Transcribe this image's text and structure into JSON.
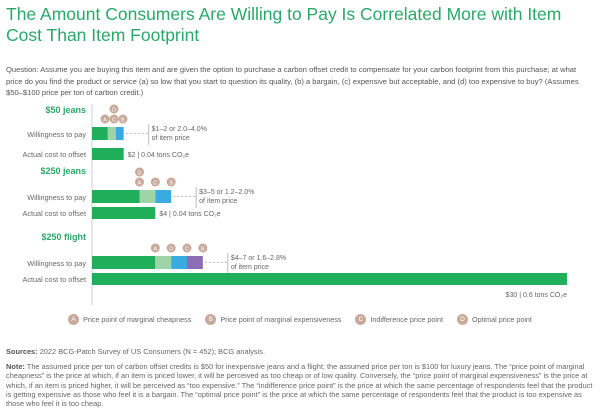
{
  "title": "The Amount Consumers Are Willing to Pay Is Correlated More with Item Cost Than Item Footprint",
  "question": "Question: Assume you are buying this item and are given the option to purchase a carbon offset credit to compensate for your carbon footprint from this purchase; at what price do you find the product or service (a) so low that you start to question its quality, (b) a bargain, (c) expensive but acceptable, and (d) too expensive to buy? (Assumes $50–$100 price per ton of carbon credit.)",
  "colors": {
    "accent": "#2aa86a",
    "green": "#1fae59",
    "light_green": "#9fd4a8",
    "blue": "#3aabe0",
    "purple": "#8a6db5",
    "badge": "#c9a99a"
  },
  "chart_data": {
    "type": "bar",
    "orientation": "horizontal",
    "unit": "USD",
    "xlim": [
      0,
      30
    ],
    "row_labels": {
      "wtp": "Willingness to pay",
      "actual": "Actual cost to offset"
    },
    "groups": [
      {
        "name": "$50 jeans",
        "price_points": {
          "A": 1,
          "C": 1.5,
          "B": 2,
          "D": 1.5
        },
        "segments": [
          {
            "to": 1,
            "color": "green"
          },
          {
            "to": 1.5,
            "color": "light_green"
          },
          {
            "to": 2,
            "color": "blue"
          }
        ],
        "wtp_label": [
          "$1–2 or 2.0–4.0%",
          "of item price"
        ],
        "actual": 2,
        "actual_label": "$2 | 0.04 tons CO₂e"
      },
      {
        "name": "$250 jeans",
        "price_points": {
          "A": 3,
          "C": 4,
          "B": 5,
          "D": 3
        },
        "segments": [
          {
            "to": 3,
            "color": "green"
          },
          {
            "to": 4,
            "color": "light_green"
          },
          {
            "to": 5,
            "color": "blue"
          }
        ],
        "wtp_label": [
          "$3–5 or 1.2–2.0%",
          "of item price"
        ],
        "actual": 4,
        "actual_label": "$4 | 0.04 tons CO₂e"
      },
      {
        "name": "$250 flight",
        "price_points": {
          "A": 4,
          "D": 5,
          "C": 6,
          "B": 7
        },
        "segments": [
          {
            "to": 4,
            "color": "green"
          },
          {
            "to": 5,
            "color": "light_green"
          },
          {
            "to": 6,
            "color": "blue"
          },
          {
            "to": 7,
            "color": "purple"
          }
        ],
        "wtp_label": [
          "$4–7 or 1.6–2.8%",
          "of item price"
        ],
        "actual": 30,
        "actual_label": "$30 | 0.6 tons CO₂e"
      }
    ],
    "legend": [
      {
        "key": "A",
        "label": "Price point of marginal cheapness"
      },
      {
        "key": "B",
        "label": "Price point of marginal expensiveness"
      },
      {
        "key": "C",
        "label": "Indifference price point"
      },
      {
        "key": "D",
        "label": "Optimal price point"
      }
    ]
  },
  "sources_label": "Sources:",
  "sources": " 2022 BCG-Patch Survey of US Consumers (N = 452); BCG analysis.",
  "note_label": "Note:",
  "note": " The assumed price per ton of carbon offset credits is $50 for inexpensive jeans and a flight; the assumed price per ton is $100 for luxury jeans. The “price point of marginal cheapness” is the price at which, if an item is priced lower, it will be perceived as too cheap or of low quality. Conversely, the “price point of marginal expensiveness” is the price at which, if an item is priced higher, it will be perceived as “too expensive.” The “indifference price point” is the price at which the same percentage of respondents feel that the product is getting expensive as those who feel it is a bargain. The “optimal price point” is the price at which the same percentage of respondents feel that the product is too expensive as those who feel it is too cheap."
}
